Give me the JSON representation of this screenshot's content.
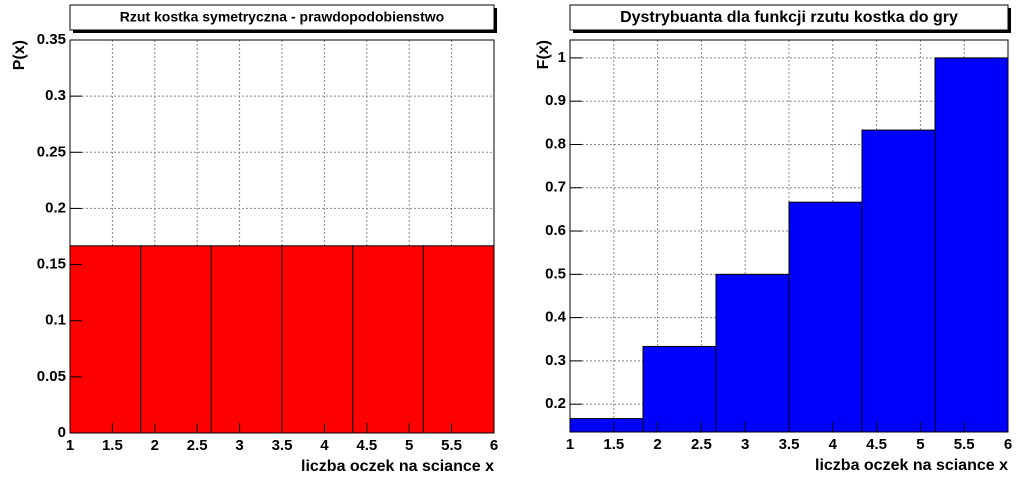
{
  "chart_data": [
    {
      "type": "histogram",
      "title": "Rzut kostka symetryczna - prawdopodobienstwo",
      "xlabel": "liczba oczek na sciance x",
      "ylabel": "P(x)",
      "bins": [
        1,
        1.8333,
        2.6667,
        3.5,
        4.3333,
        5.1667,
        6
      ],
      "values": [
        0.1667,
        0.1667,
        0.1667,
        0.1667,
        0.1667,
        0.1667
      ],
      "color": "#ff0000",
      "xlim": [
        1,
        6
      ],
      "xticks": [
        1,
        1.5,
        2,
        2.5,
        3,
        3.5,
        4,
        4.5,
        5,
        5.5,
        6
      ],
      "ylim": [
        0,
        0.35
      ],
      "yticks": [
        0,
        0.05,
        0.1,
        0.15,
        0.2,
        0.25,
        0.3,
        0.35
      ],
      "grid": true
    },
    {
      "type": "histogram",
      "title": "Dystrybuanta dla funkcji rzutu kostka do gry",
      "xlabel": "liczba oczek na sciance x",
      "ylabel": "F(x)",
      "bins": [
        1,
        1.8333,
        2.6667,
        3.5,
        4.3333,
        5.1667,
        6
      ],
      "values": [
        0.1667,
        0.3333,
        0.5,
        0.6667,
        0.8333,
        1
      ],
      "color": "#0000ff",
      "xlim": [
        1,
        6
      ],
      "xticks": [
        1,
        1.5,
        2,
        2.5,
        3,
        3.5,
        4,
        4.5,
        5,
        5.5,
        6
      ],
      "ylim": [
        0.1357,
        1.0414
      ],
      "yticks": [
        0.2,
        0.3,
        0.4,
        0.5,
        0.6,
        0.7,
        0.8,
        0.9,
        1
      ],
      "grid": true
    }
  ]
}
